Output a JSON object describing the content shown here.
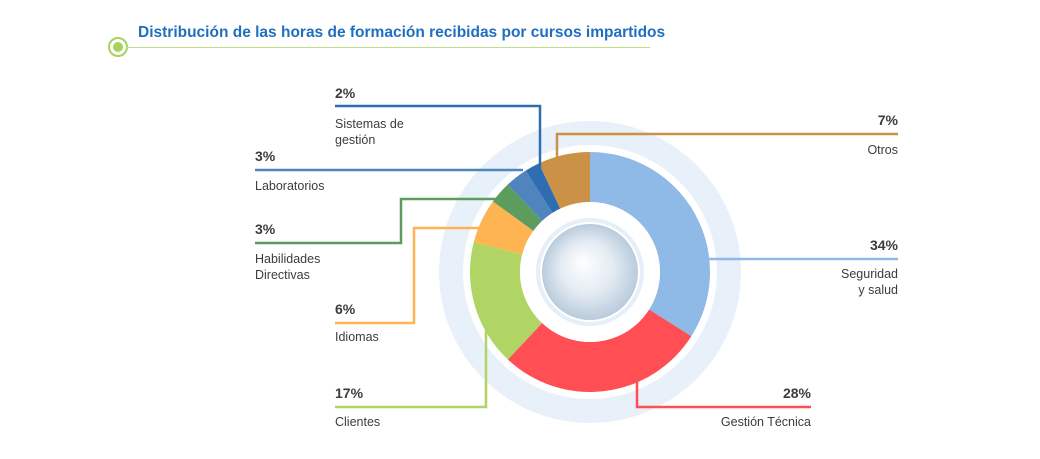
{
  "header": {
    "title": "Distribución de las horas de formación recibidas por cursos impartidos"
  },
  "chart_data": {
    "type": "pie",
    "variant": "donut",
    "unit": "%",
    "title": "Distribución de las horas de formación recibidas por cursos impartidos",
    "legend": "callout labels",
    "slices": [
      {
        "label": "Seguridad y salud",
        "lines": [
          "Seguridad",
          "y salud"
        ],
        "pct_text": "34%",
        "value": 34,
        "color": "#8fb9e6"
      },
      {
        "label": "Gestión Técnica",
        "lines": [
          "Gestión Técnica"
        ],
        "pct_text": "28%",
        "value": 28,
        "color": "#ff4f55"
      },
      {
        "label": "Clientes",
        "lines": [
          "Clientes"
        ],
        "pct_text": "17%",
        "value": 17,
        "color": "#b1d564"
      },
      {
        "label": "Idiomas",
        "lines": [
          "Idiomas"
        ],
        "pct_text": "6%",
        "value": 6,
        "color": "#ffb453"
      },
      {
        "label": "Habilidades Directivas",
        "lines": [
          "Habilidades",
          "Directivas"
        ],
        "pct_text": "3%",
        "value": 3,
        "color": "#5c9c5c"
      },
      {
        "label": "Laboratorios",
        "lines": [
          "Laboratorios"
        ],
        "pct_text": "3%",
        "value": 3,
        "color": "#4f84bd"
      },
      {
        "label": "Sistemas de gestión",
        "lines": [
          "Sistemas de",
          "gestión"
        ],
        "pct_text": "2%",
        "value": 2,
        "color": "#2f6db3"
      },
      {
        "label": "Otros",
        "lines": [
          "Otros"
        ],
        "pct_text": "7%",
        "value": 7,
        "color": "#cb9146"
      }
    ]
  }
}
